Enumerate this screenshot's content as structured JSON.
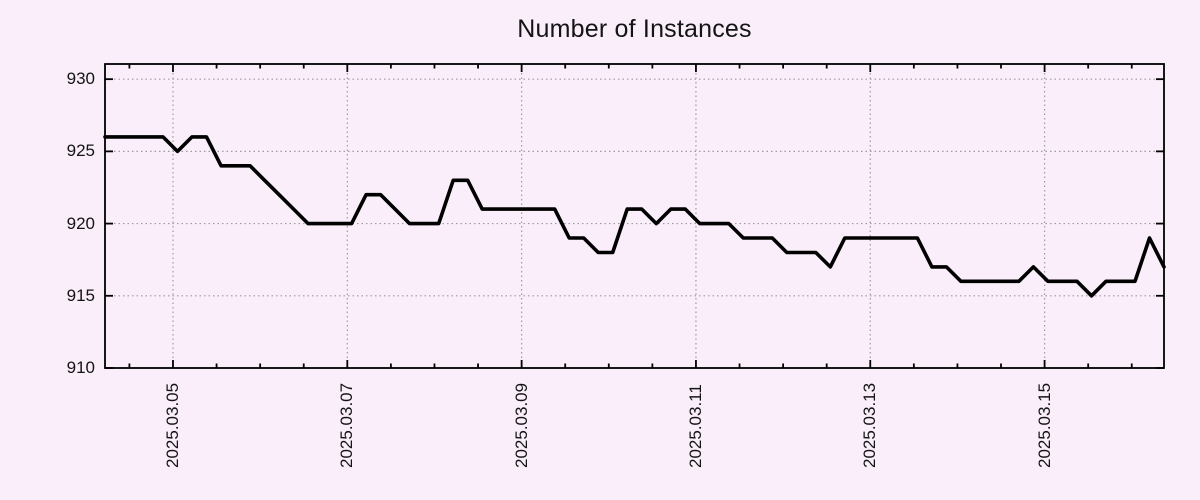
{
  "page": {
    "background_color": "#f9eef9",
    "text_color": "#141414"
  },
  "chart_data": {
    "type": "line",
    "title": "Number of Instances",
    "xlabel": "",
    "ylabel": "",
    "legend": "none",
    "grid": "dotted",
    "grid_color": "#9c9c9c",
    "axes_color": "#000000",
    "series": [
      {
        "name": "instances",
        "color": "#000000",
        "line_width": 3.6,
        "values": [
          926,
          926,
          926,
          926,
          926,
          925,
          926,
          926,
          924,
          924,
          924,
          923,
          922,
          921,
          920,
          920,
          920,
          920,
          922,
          922,
          921,
          920,
          920,
          920,
          923,
          923,
          921,
          921,
          921,
          921,
          921,
          921,
          919,
          919,
          918,
          918,
          921,
          921,
          920,
          921,
          921,
          920,
          920,
          920,
          919,
          919,
          919,
          918,
          918,
          918,
          917,
          919,
          919,
          919,
          919,
          919,
          919,
          917,
          917,
          916,
          916,
          916,
          916,
          916,
          917,
          916,
          916,
          916,
          915,
          916,
          916,
          916,
          919,
          917
        ]
      }
    ],
    "y_axis": {
      "tick_labels": [
        "910",
        "915",
        "920",
        "925",
        "930"
      ],
      "tick_values": [
        910,
        915,
        920,
        925,
        930
      ],
      "range": [
        910,
        931.05
      ]
    },
    "x_axis": {
      "tick_labels": [
        "2025.03.05",
        "2025.03.07",
        "2025.03.09",
        "2025.03.11",
        "2025.03.13",
        "2025.03.15"
      ],
      "tick_day_offsets": [
        0,
        2,
        4,
        6,
        8,
        10
      ],
      "minor_tick_interval_days": 0.5,
      "range_day_offsets": [
        -0.78,
        11.37
      ],
      "label_rotation_deg": -90
    },
    "sampling": {
      "interval_days": 0.1665,
      "points": 74
    }
  }
}
